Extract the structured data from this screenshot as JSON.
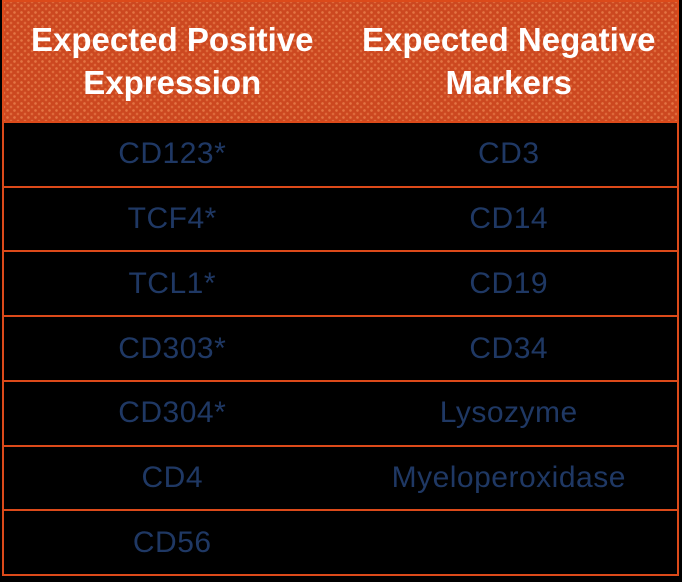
{
  "colors": {
    "page_background": "#000000",
    "header_background": "#CC4820",
    "header_text": "#FFFFFF",
    "body_background": "#000000",
    "body_text": "#1F3864",
    "border": "#DC4A1A"
  },
  "table": {
    "columns": [
      {
        "header": "Expected Positive Expression"
      },
      {
        "header": "Expected Negative Markers"
      }
    ],
    "rows": [
      [
        "CD123*",
        "CD3"
      ],
      [
        "TCF4*",
        "CD14"
      ],
      [
        "TCL1*",
        "CD19"
      ],
      [
        "CD303*",
        "CD34"
      ],
      [
        "CD304*",
        "Lysozyme"
      ],
      [
        "CD4",
        "Myeloperoxidase"
      ],
      [
        "CD56",
        ""
      ]
    ]
  }
}
